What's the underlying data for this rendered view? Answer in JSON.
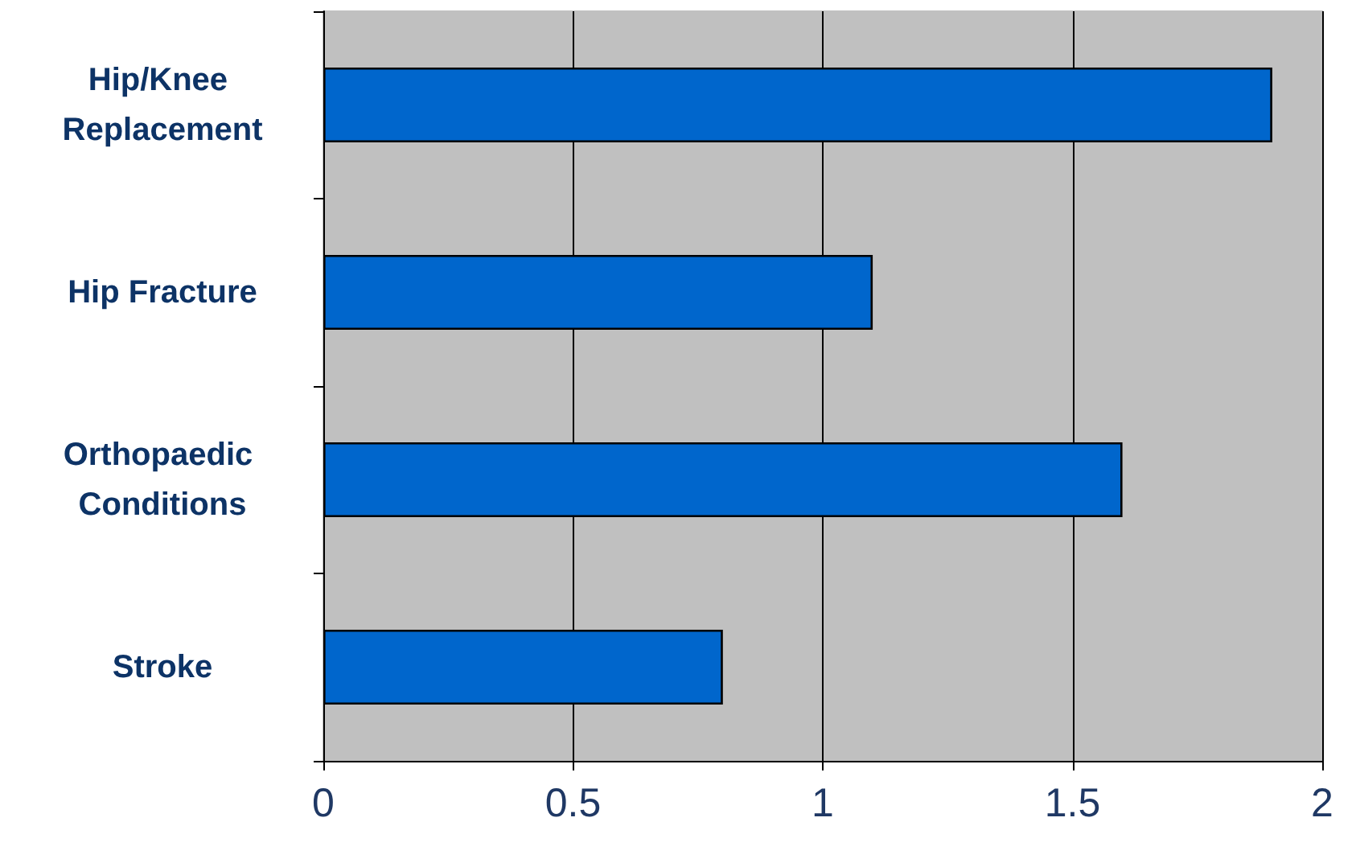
{
  "chart_data": {
    "type": "bar",
    "orientation": "horizontal",
    "categories": [
      "Hip/Knee Replacement",
      "Hip Fracture",
      "Orthopaedic Conditions",
      "Stroke"
    ],
    "values": [
      1.9,
      1.1,
      1.6,
      0.8
    ],
    "color": "#0066cc",
    "xlim": [
      0,
      2
    ],
    "xticks": [
      0,
      0.5,
      1,
      1.5,
      2
    ],
    "grid": "x"
  }
}
